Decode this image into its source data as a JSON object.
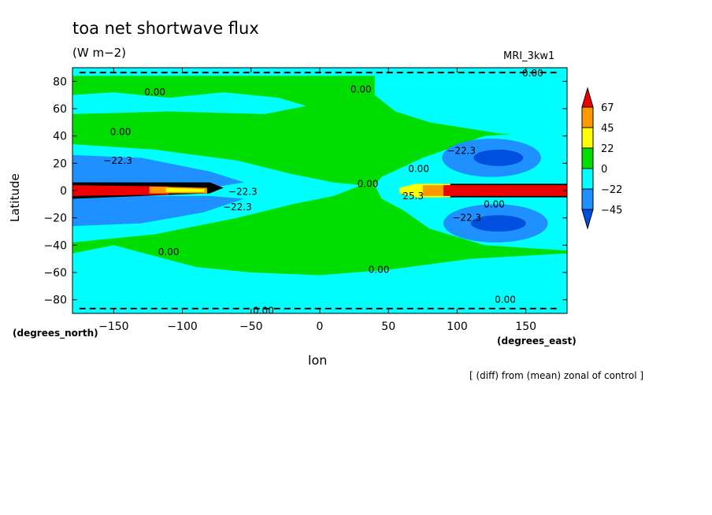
{
  "chart_data": {
    "type": "heatmap",
    "title": "toa net shortwave flux",
    "units": "(W m−2)",
    "model": "MRI_3kw1",
    "xlabel": "lon",
    "ylabel": "Latitude",
    "x_unit_label": "(degrees_east)",
    "y_unit_label": "(degrees_north)",
    "note": "[ (diff) from (mean) zonal of control ]",
    "xlim": [
      -180,
      180
    ],
    "ylim": [
      -90,
      90
    ],
    "x_ticks": [
      "−150",
      "−100",
      "−50",
      "0",
      "50",
      "100",
      "150"
    ],
    "x_tick_values": [
      -150,
      -100,
      -50,
      0,
      50,
      100,
      150
    ],
    "y_ticks": [
      "80",
      "60",
      "40",
      "20",
      "0",
      "−20",
      "−40",
      "−60",
      "−80"
    ],
    "y_tick_values": [
      80,
      60,
      40,
      20,
      0,
      -20,
      -40,
      -60,
      -80
    ],
    "colorbar": {
      "labels": [
        "67",
        "45",
        "22",
        "0",
        "−22",
        "−45"
      ],
      "levels": [
        67,
        45,
        22,
        0,
        -22,
        -45
      ],
      "colors": [
        "#ee0000",
        "#ff9900",
        "#ffff00",
        "#00dd00",
        "#00ffff",
        "#1e90ff",
        "#0050e0"
      ]
    },
    "contour_labels": [
      {
        "text": "0.00",
        "lon": 155,
        "lat": 86
      },
      {
        "text": "0.00",
        "lon": -120,
        "lat": 72
      },
      {
        "text": "0.00",
        "lon": 30,
        "lat": 74
      },
      {
        "text": "0.00",
        "lon": -145,
        "lat": 43
      },
      {
        "text": "−22.3",
        "lon": -147,
        "lat": 22
      },
      {
        "text": "−22.3",
        "lon": 103,
        "lat": 29
      },
      {
        "text": "0.00",
        "lon": 72,
        "lat": 16
      },
      {
        "text": "0.00",
        "lon": 35,
        "lat": 5
      },
      {
        "text": "−22.3",
        "lon": -56,
        "lat": -1
      },
      {
        "text": "−22.3",
        "lon": -60,
        "lat": -12
      },
      {
        "text": "25.3",
        "lon": 68,
        "lat": -4
      },
      {
        "text": "0.00",
        "lon": 127,
        "lat": -10
      },
      {
        "text": "−22.3",
        "lon": 107,
        "lat": -20
      },
      {
        "text": "0.00",
        "lon": -110,
        "lat": -45
      },
      {
        "text": "0.00",
        "lon": 43,
        "lat": -58
      },
      {
        "text": "0.00",
        "lon": 135,
        "lat": -80
      },
      {
        "text": "0.00",
        "lon": -41,
        "lat": -88
      }
    ]
  }
}
